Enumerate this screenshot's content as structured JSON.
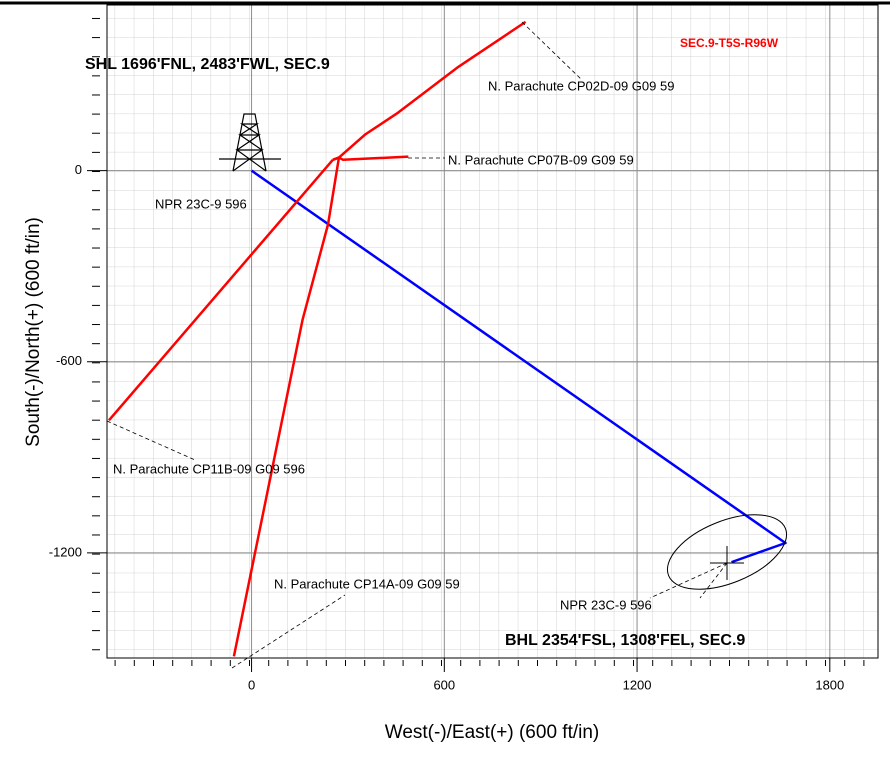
{
  "chart_data": {
    "type": "line",
    "annotations": [
      "SHL 1696'FNL, 2483'FWL, SEC.9",
      "BHL 2354'FSL, 1308'FEL, SEC.9",
      "SEC.9-T5S-R96W"
    ],
    "x_label": "West(-)/East(+) (600 ft/in)",
    "y_label": "South(-)/North(+) (600 ft/in)",
    "xlim": [
      -450,
      1950
    ],
    "ylim": [
      -1530,
      520
    ],
    "xticks": [
      0,
      600,
      1200,
      1800
    ],
    "yticks": [
      0,
      -600,
      -1200
    ],
    "grid": true,
    "series": [
      {
        "name": "NPR 23C-9 596",
        "color": "#0000ff",
        "x": [
          0,
          1662,
          1494
        ],
        "values": [
          0,
          -1169,
          -1229
        ]
      },
      {
        "name": "N. Parachute CP02D-09 G09 59",
        "color": "#ff0000",
        "x": [
          253,
          272,
          353,
          456,
          644,
          853
        ],
        "values": [
          34,
          41,
          113,
          182,
          326,
          467
        ]
      },
      {
        "name": "N. Parachute CP07B-09 G09 59",
        "color": "#ff0000",
        "x": [
          253,
          272,
          285,
          488
        ],
        "values": [
          34,
          41,
          34,
          44
        ]
      },
      {
        "name": "N. Parachute CP11B-09 G09 596",
        "color": "#ff0000",
        "x": [
          253,
          -444
        ],
        "values": [
          34,
          -784
        ]
      },
      {
        "name": "N. Parachute CP14A-09 G09 59",
        "color": "#ff0000",
        "x": [
          272,
          238,
          159,
          -55
        ],
        "values": [
          41,
          -169,
          -467,
          -1525
        ]
      }
    ]
  }
}
